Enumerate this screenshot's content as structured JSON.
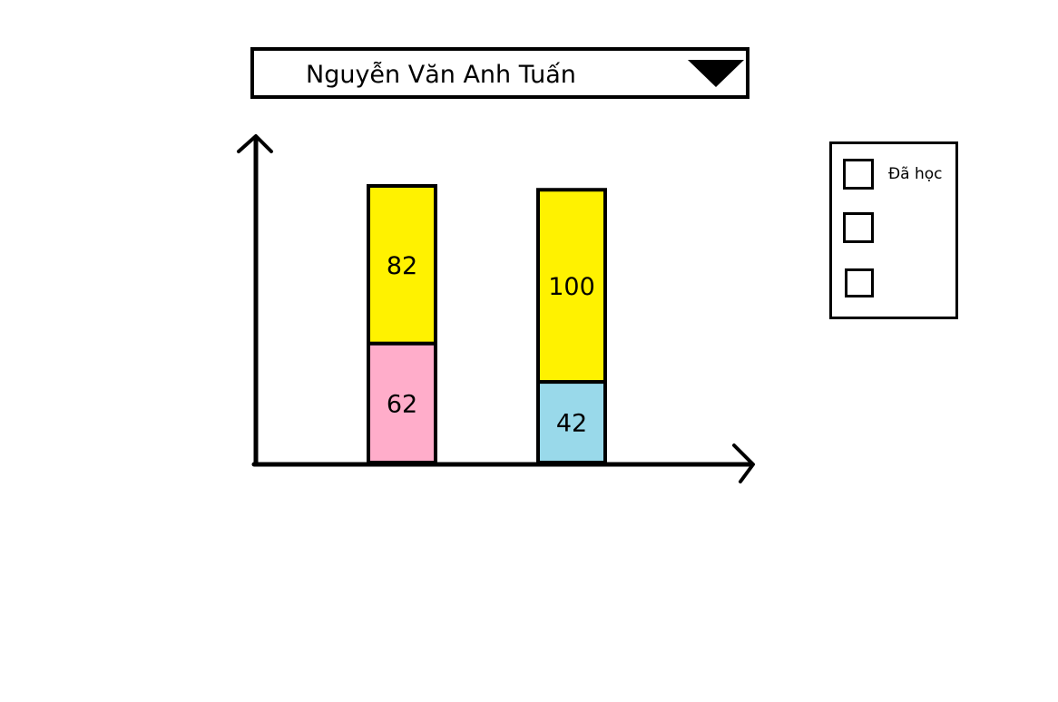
{
  "dropdown": {
    "selected": "Nguyễn Văn Anh Tuấn",
    "arrow_icon": "triangle-down-icon"
  },
  "legend": {
    "items": [
      {
        "label": "Đã học",
        "checked": false
      },
      {
        "label": "",
        "checked": false
      },
      {
        "label": "",
        "checked": false
      }
    ]
  },
  "chart_data": {
    "type": "bar",
    "stacked": true,
    "categories": [
      "",
      ""
    ],
    "title": "",
    "xlabel": "",
    "ylabel": "",
    "grid": false,
    "ylim": [
      0,
      150
    ],
    "bars": [
      {
        "segments": [
          {
            "value": 62,
            "label": "62",
            "color": "#ffadca"
          },
          {
            "value": 82,
            "label": "82",
            "color": "#fff200"
          }
        ]
      },
      {
        "segments": [
          {
            "value": 42,
            "label": "42",
            "color": "#99d9ea"
          },
          {
            "value": 100,
            "label": "100",
            "color": "#fff200"
          }
        ]
      }
    ]
  }
}
